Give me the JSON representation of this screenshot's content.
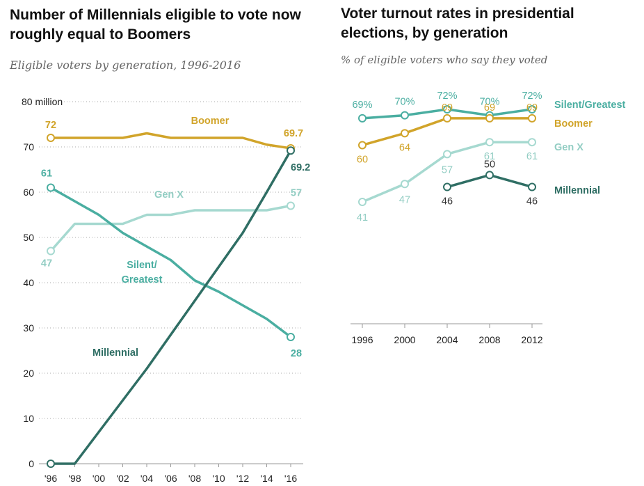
{
  "left_panel": {
    "title": "Number of Millennials eligible to vote now roughly equal to Boomers",
    "subtitle": "Eligible voters by generation, 1996-2016"
  },
  "right_panel": {
    "title": "Voter turnout rates in presidential elections, by generation",
    "subtitle": "% of eligible voters who say they voted"
  },
  "colors": {
    "boomer": "#d1a42a",
    "genx": "#a6d9d0",
    "genx_label": "#92cdc3",
    "silent": "#4aaea1",
    "millennial": "#2f6e64"
  },
  "chart_data": [
    {
      "type": "line",
      "x": [
        1996,
        1998,
        2000,
        2002,
        2004,
        2006,
        2008,
        2010,
        2012,
        2014,
        2016
      ],
      "xtick_labels": [
        "'96",
        "'98",
        "'00",
        "'02",
        "'04",
        "'06",
        "'08",
        "'10",
        "'12",
        "'14",
        "'16"
      ],
      "ylim": [
        0,
        80
      ],
      "yticks": [
        0,
        10,
        20,
        30,
        40,
        50,
        60,
        70,
        80
      ],
      "ytick_labels": [
        "0",
        "10",
        "20",
        "30",
        "40",
        "50",
        "60",
        "70",
        "80 million"
      ],
      "grid": true,
      "series": [
        {
          "name": "Boomer",
          "color_key": "boomer",
          "values": [
            72,
            72,
            72,
            72,
            73,
            72,
            72,
            72,
            72,
            70.5,
            69.7
          ],
          "end_labels": [
            "72",
            "69.7"
          ]
        },
        {
          "name": "Gen X",
          "color_key": "genx",
          "values": [
            47,
            53,
            53,
            53,
            55,
            55,
            56,
            56,
            56,
            56,
            57
          ],
          "end_labels": [
            "47",
            "57"
          ]
        },
        {
          "name": "Silent/ Greatest",
          "color_key": "silent",
          "values": [
            61,
            58,
            55,
            51,
            48,
            45,
            40.5,
            38,
            35,
            32,
            28
          ],
          "end_labels": [
            "61",
            "28"
          ]
        },
        {
          "name": "Millennial",
          "color_key": "millennial",
          "values": [
            0,
            0,
            7,
            14,
            21,
            28.5,
            36,
            43.5,
            51,
            60,
            69.2
          ],
          "end_labels": [
            "",
            "69.2"
          ]
        }
      ]
    },
    {
      "type": "line",
      "x": [
        1996,
        2000,
        2004,
        2008,
        2012
      ],
      "xtick_labels": [
        "1996",
        "2000",
        "2004",
        "2008",
        "2012"
      ],
      "grid": false,
      "series": [
        {
          "name": "Silent/Greatest",
          "color_key": "silent",
          "values": [
            69,
            70,
            72,
            70,
            72
          ],
          "labels": [
            "69%",
            "70%",
            "72%",
            "70%",
            "72%"
          ]
        },
        {
          "name": "Boomer",
          "color_key": "boomer",
          "values": [
            60,
            64,
            69,
            69,
            69
          ],
          "labels": [
            "60",
            "64",
            "69",
            "69",
            "69"
          ]
        },
        {
          "name": "Gen X",
          "color_key": "genx",
          "values": [
            41,
            47,
            57,
            61,
            61
          ],
          "labels": [
            "41",
            "47",
            "57",
            "61",
            "61"
          ]
        },
        {
          "name": "Millennial",
          "color_key": "millennial",
          "values": [
            null,
            null,
            46,
            50,
            46
          ],
          "labels": [
            "",
            "",
            "46",
            "50",
            "46"
          ]
        }
      ]
    }
  ]
}
